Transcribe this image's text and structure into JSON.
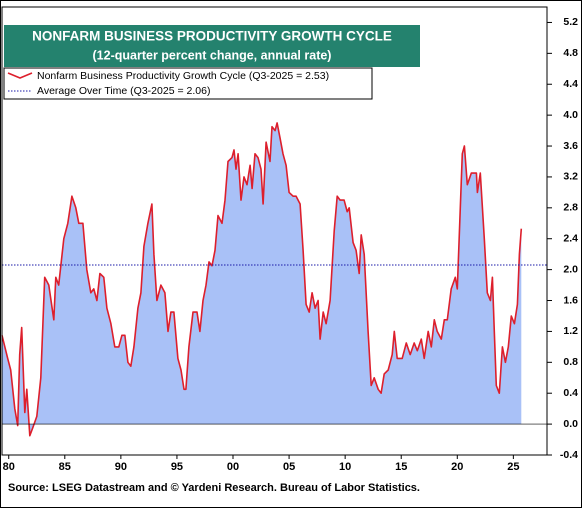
{
  "chart_data": {
    "type": "area",
    "title": "NONFARM BUSINESS PRODUCTIVITY GROWTH CYCLE",
    "subtitle": "(12-quarter percent change, annual rate)",
    "source": "Source: LSEG Datastream and © Yardeni Research. Bureau of Labor Statistics.",
    "x": [
      1979.4,
      1979.91,
      1980.18,
      1980.54,
      1980.8,
      1980.98,
      1981.16,
      1981.43,
      1981.61,
      1981.88,
      1982.14,
      1982.5,
      1982.86,
      1983.21,
      1983.57,
      1984.02,
      1984.2,
      1984.46,
      1984.91,
      1985.27,
      1985.63,
      1985.98,
      1986.25,
      1986.61,
      1986.96,
      1987.32,
      1987.59,
      1987.86,
      1988.13,
      1988.48,
      1988.75,
      1989.11,
      1989.46,
      1989.82,
      1990.09,
      1990.36,
      1990.63,
      1990.89,
      1991.16,
      1991.52,
      1991.79,
      1992.05,
      1992.41,
      1992.77,
      1992.95,
      1993.21,
      1993.57,
      1993.93,
      1994.2,
      1994.46,
      1994.73,
      1995.09,
      1995.36,
      1995.63,
      1995.8,
      1996.07,
      1996.43,
      1996.79,
      1997.05,
      1997.32,
      1997.59,
      1997.86,
      1998.13,
      1998.39,
      1998.66,
      1999.02,
      1999.29,
      1999.55,
      1999.91,
      2000.09,
      2000.27,
      2000.45,
      2000.71,
      2000.98,
      2001.25,
      2001.52,
      2001.7,
      2001.96,
      2002.23,
      2002.5,
      2002.68,
      2002.95,
      2003.3,
      2003.48,
      2003.75,
      2003.93,
      2004.2,
      2004.46,
      2004.73,
      2005.0,
      2005.36,
      2005.63,
      2005.98,
      2006.25,
      2006.52,
      2006.79,
      2007.05,
      2007.32,
      2007.59,
      2007.77,
      2008.04,
      2008.3,
      2008.66,
      2009.02,
      2009.29,
      2009.55,
      2009.91,
      2010.18,
      2010.36,
      2010.71,
      2010.98,
      2011.25,
      2011.43,
      2011.7,
      2012.05,
      2012.32,
      2012.59,
      2012.95,
      2013.21,
      2013.48,
      2013.84,
      2014.2,
      2014.38,
      2014.64,
      2015.09,
      2015.45,
      2015.8,
      2016.16,
      2016.43,
      2016.79,
      2017.05,
      2017.41,
      2017.68,
      2017.95,
      2018.21,
      2018.57,
      2018.84,
      2019.11,
      2019.46,
      2019.82,
      2020.0,
      2020.27,
      2020.45,
      2020.63,
      2020.89,
      2021.25,
      2021.7,
      2021.79,
      2022.05,
      2022.41,
      2022.68,
      2022.95,
      2023.13,
      2023.3,
      2023.48,
      2023.75,
      2024.02,
      2024.29,
      2024.55,
      2024.82,
      2025.09,
      2025.36,
      2025.54,
      2025.71
    ],
    "series": [
      {
        "name": "Nonfarm Business Productivity Growth Cycle (Q3-2025 = 2.53)",
        "color": "#dd1f2c",
        "fill": "#a9c1f7",
        "values": [
          1.15,
          0.85,
          0.7,
          0.2,
          -0.02,
          0.9,
          1.25,
          0.15,
          0.45,
          -0.15,
          -0.05,
          0.1,
          0.6,
          1.9,
          1.8,
          1.35,
          1.9,
          1.8,
          2.4,
          2.6,
          2.95,
          2.8,
          2.6,
          2.6,
          2.0,
          1.7,
          1.75,
          1.6,
          1.95,
          1.9,
          1.5,
          1.3,
          1.0,
          1.0,
          1.15,
          1.15,
          0.8,
          0.75,
          1.0,
          1.5,
          1.7,
          2.3,
          2.6,
          2.85,
          2.2,
          1.6,
          1.8,
          1.7,
          1.2,
          1.45,
          1.45,
          0.85,
          0.7,
          0.45,
          0.45,
          1.0,
          1.45,
          1.45,
          1.2,
          1.6,
          1.8,
          2.1,
          2.05,
          2.25,
          2.7,
          2.6,
          2.9,
          3.4,
          3.45,
          3.55,
          3.3,
          3.5,
          2.9,
          3.2,
          3.1,
          3.35,
          3.05,
          3.5,
          3.45,
          3.3,
          2.85,
          3.65,
          3.4,
          3.85,
          3.8,
          3.9,
          3.7,
          3.5,
          3.35,
          3.0,
          2.95,
          2.95,
          2.85,
          2.25,
          1.55,
          1.45,
          1.7,
          1.5,
          1.6,
          1.1,
          1.45,
          1.3,
          1.6,
          2.5,
          2.95,
          2.9,
          2.9,
          2.75,
          2.8,
          2.35,
          2.25,
          1.95,
          2.45,
          2.2,
          1.2,
          0.5,
          0.6,
          0.45,
          0.4,
          0.65,
          0.7,
          0.9,
          1.2,
          0.85,
          0.85,
          1.05,
          0.9,
          1.05,
          0.95,
          1.1,
          0.85,
          1.2,
          1.0,
          1.35,
          1.2,
          1.1,
          1.35,
          1.35,
          1.75,
          1.9,
          1.75,
          2.8,
          3.5,
          3.6,
          3.1,
          3.25,
          3.25,
          3.0,
          3.25,
          2.4,
          1.7,
          1.6,
          1.9,
          1.2,
          0.5,
          0.4,
          1.0,
          0.8,
          1.0,
          1.4,
          1.3,
          1.55,
          2.2,
          2.53
        ]
      }
    ],
    "hlines": [
      {
        "name": "Average Over Time (Q3-2025 = 2.06)",
        "value": 2.06,
        "color": "#1a1aa8"
      }
    ],
    "xlim": [
      1979.4,
      2028.0
    ],
    "xticks": [
      {
        "value": 1980,
        "label": "80"
      },
      {
        "value": 1985,
        "label": "85"
      },
      {
        "value": 1990,
        "label": "90"
      },
      {
        "value": 1995,
        "label": "95"
      },
      {
        "value": 2000,
        "label": "00"
      },
      {
        "value": 2005,
        "label": "05"
      },
      {
        "value": 2010,
        "label": "10"
      },
      {
        "value": 2015,
        "label": "15"
      },
      {
        "value": 2020,
        "label": "20"
      },
      {
        "value": 2025,
        "label": "25"
      }
    ],
    "ylim": [
      -0.4,
      5.4
    ],
    "yticks": [
      -0.4,
      {
        "value": 0,
        "label": "0.0"
      },
      0.4,
      0.8,
      1.2,
      1.6,
      {
        "value": 2,
        "label": "2.0"
      },
      2.4,
      2.8,
      3.2,
      3.6,
      {
        "value": 4,
        "label": "4.0"
      },
      4.4,
      4.8,
      5.2
    ],
    "grid": false,
    "legend": "upper left"
  }
}
